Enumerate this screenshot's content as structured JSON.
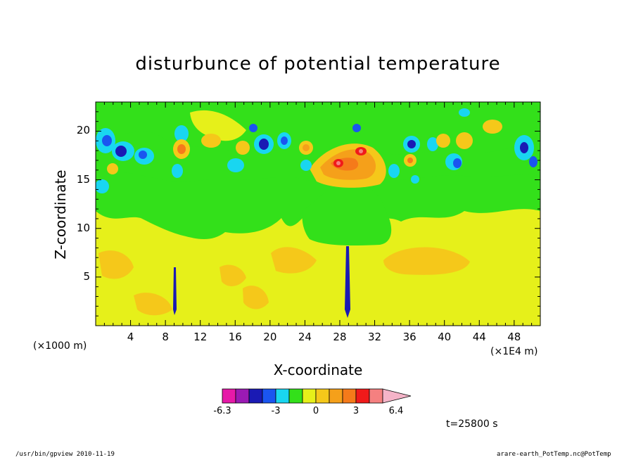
{
  "chart_data": {
    "type": "heatmap",
    "title": "disturbunce of potential temperature",
    "xlabel": "X-coordinate",
    "ylabel": "Z-coordinate",
    "x_unit_left": "(×1000 m)",
    "x_unit_right": "(×1E4 m)",
    "xlim": [
      0,
      51
    ],
    "ylim": [
      0,
      23
    ],
    "x_ticks": [
      4,
      8,
      12,
      16,
      20,
      24,
      28,
      32,
      36,
      40,
      44,
      48
    ],
    "y_ticks": [
      5,
      10,
      15,
      20
    ],
    "colorbar": {
      "colors": [
        "#e619a8",
        "#9a1ab4",
        "#1a1ab4",
        "#1a55f0",
        "#19d6f0",
        "#33e01a",
        "#e6f01a",
        "#f5c81a",
        "#f5a01a",
        "#f57a1a",
        "#f01a1a",
        "#f58080",
        "#f5b4c8"
      ],
      "tick_labels": [
        "-6.3",
        "-3",
        "0",
        "3",
        "6.4"
      ]
    },
    "time_label": "t=25800 s",
    "footer_left": "/usr/bin/gpview   2010-11-19",
    "footer_right": "arare-earth_PotTemp.nc@PotTemp"
  }
}
